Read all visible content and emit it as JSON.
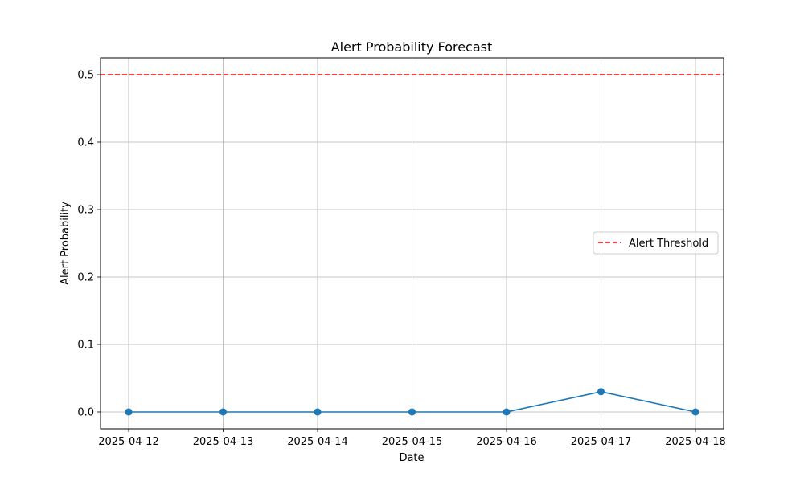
{
  "chart_data": {
    "type": "line",
    "title": "Alert Probability Forecast",
    "xlabel": "Date",
    "ylabel": "Alert Probability",
    "categories": [
      "2025-04-12",
      "2025-04-13",
      "2025-04-14",
      "2025-04-15",
      "2025-04-16",
      "2025-04-17",
      "2025-04-18"
    ],
    "series": [
      {
        "name": "Alert Probability",
        "values": [
          0.0,
          0.0,
          0.0,
          0.0,
          0.0,
          0.03,
          0.0
        ],
        "color": "#1f77b4",
        "marker": "circle"
      }
    ],
    "threshold": {
      "label": "Alert Threshold",
      "value": 0.5,
      "color": "#ff0000",
      "style": "dashed"
    },
    "ylim": [
      -0.025,
      0.525
    ],
    "yticks": [
      0.0,
      0.1,
      0.2,
      0.3,
      0.4,
      0.5
    ],
    "ytick_labels": [
      "0.0",
      "0.1",
      "0.2",
      "0.3",
      "0.4",
      "0.5"
    ],
    "grid": true,
    "legend_position": "center-right"
  }
}
